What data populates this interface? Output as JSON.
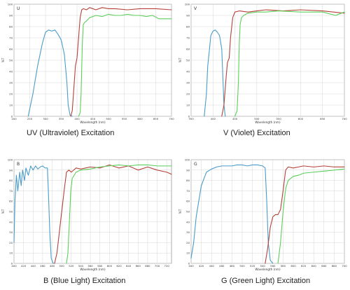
{
  "chart_data": [
    {
      "type": "line",
      "panel_letter": "U",
      "caption": "UV (Ultraviolet) Excitation",
      "xlabel": "Wavelength (nm)",
      "ylabel": "%T",
      "xlim": [
        200,
        700
      ],
      "ylim": [
        0,
        100
      ],
      "xticks": [
        200,
        250,
        300,
        350,
        400,
        450,
        500,
        550,
        600,
        650,
        700
      ],
      "yticks": [
        0,
        10,
        20,
        30,
        40,
        50,
        60,
        70,
        80,
        90,
        100
      ],
      "grid": true,
      "colors": {
        "excitation": "#4a9cc9",
        "dichroic": "#b5413a",
        "emission": "#5ccf5c"
      },
      "series": [
        {
          "key": "excitation",
          "x": [
            245,
            260,
            275,
            290,
            300,
            310,
            320,
            330,
            340,
            350,
            360,
            368,
            372,
            378,
            385
          ],
          "y": [
            0,
            20,
            45,
            65,
            75,
            77,
            76,
            77,
            73,
            68,
            55,
            30,
            10,
            1,
            0
          ]
        },
        {
          "key": "dichroic",
          "x": [
            380,
            385,
            390,
            395,
            400,
            405,
            410,
            415,
            420,
            430,
            440,
            460,
            480,
            500,
            520,
            560,
            600,
            650,
            700
          ],
          "y": [
            0,
            5,
            25,
            45,
            52,
            70,
            88,
            95,
            96,
            95,
            97,
            95,
            97,
            96,
            96,
            95,
            96,
            96,
            95
          ]
        },
        {
          "key": "emission",
          "x": [
            405,
            410,
            413,
            417,
            420,
            425,
            430,
            440,
            460,
            480,
            500,
            520,
            540,
            560,
            580,
            600,
            620,
            640,
            660,
            680,
            700
          ],
          "y": [
            0,
            3,
            20,
            65,
            82,
            84,
            85,
            88,
            90,
            89,
            91,
            90,
            90,
            91,
            90,
            90,
            89,
            90,
            87,
            87,
            87
          ]
        }
      ]
    },
    {
      "type": "line",
      "panel_letter": "V",
      "caption": "V (Violet) Excitation",
      "xlabel": "Wavelength (nm)",
      "ylabel": "%T",
      "xlim": [
        350,
        700
      ],
      "ylim": [
        0,
        100
      ],
      "xticks": [
        350,
        400,
        450,
        500,
        550,
        600,
        650,
        700
      ],
      "yticks": [
        0,
        10,
        20,
        30,
        40,
        50,
        60,
        70,
        80,
        90,
        100
      ],
      "grid": true,
      "colors": {
        "excitation": "#4a9cc9",
        "dichroic": "#b5413a",
        "emission": "#5ccf5c"
      },
      "series": [
        {
          "key": "excitation",
          "x": [
            380,
            385,
            388,
            392,
            395,
            400,
            405,
            410,
            415,
            420,
            425,
            428
          ],
          "y": [
            0,
            20,
            45,
            60,
            72,
            76,
            77,
            75,
            72,
            60,
            10,
            0
          ]
        },
        {
          "key": "dichroic",
          "x": [
            420,
            425,
            430,
            433,
            437,
            440,
            445,
            450,
            460,
            480,
            500,
            520,
            560,
            600,
            650,
            700
          ],
          "y": [
            0,
            10,
            35,
            48,
            52,
            70,
            88,
            93,
            94,
            93,
            94,
            95,
            94,
            95,
            94,
            92
          ]
        },
        {
          "key": "emission",
          "x": [
            450,
            455,
            458,
            460,
            462,
            465,
            470,
            480,
            500,
            520,
            550,
            600,
            650,
            680,
            700
          ],
          "y": [
            0,
            5,
            30,
            65,
            82,
            88,
            90,
            92,
            93,
            93,
            94,
            93,
            93,
            90,
            93
          ]
        }
      ]
    },
    {
      "type": "line",
      "panel_letter": "B",
      "caption": "B (Blue Light) Excitation",
      "xlabel": "Wavelength (nm)",
      "ylabel": "%T",
      "xlim": [
        400,
        730
      ],
      "ylim": [
        0,
        100
      ],
      "xticks": [
        400,
        420,
        440,
        460,
        480,
        500,
        520,
        540,
        560,
        580,
        600,
        620,
        640,
        660,
        680,
        700,
        720
      ],
      "yticks": [
        0,
        10,
        20,
        30,
        40,
        50,
        60,
        70,
        80,
        90,
        100
      ],
      "grid": true,
      "colors": {
        "excitation": "#4a9cc9",
        "dichroic": "#b5413a",
        "emission": "#5ccf5c"
      },
      "series": [
        {
          "key": "excitation",
          "x": [
            400,
            402,
            405,
            408,
            412,
            415,
            418,
            422,
            425,
            430,
            435,
            440,
            445,
            450,
            455,
            460,
            465,
            470,
            472,
            475,
            478,
            482,
            485
          ],
          "y": [
            20,
            60,
            85,
            70,
            88,
            75,
            90,
            80,
            92,
            85,
            94,
            90,
            94,
            91,
            93,
            94,
            92,
            92,
            70,
            30,
            5,
            0,
            0
          ]
        },
        {
          "key": "dichroic",
          "x": [
            485,
            490,
            495,
            500,
            505,
            510,
            515,
            520,
            530,
            540,
            560,
            580,
            600,
            620,
            640,
            660,
            680,
            700,
            720,
            730
          ],
          "y": [
            0,
            10,
            30,
            50,
            70,
            88,
            90,
            88,
            92,
            91,
            93,
            92,
            95,
            92,
            94,
            90,
            93,
            90,
            88,
            86
          ]
        },
        {
          "key": "emission",
          "x": [
            510,
            513,
            516,
            519,
            522,
            526,
            530,
            540,
            560,
            580,
            600,
            620,
            640,
            660,
            680,
            700,
            720,
            730
          ],
          "y": [
            0,
            10,
            40,
            70,
            82,
            85,
            88,
            90,
            91,
            93,
            94,
            95,
            94,
            95,
            95,
            94,
            94,
            94
          ]
        }
      ]
    },
    {
      "type": "line",
      "panel_letter": "G",
      "caption": "G (Green Light) Excitation",
      "xlabel": "Wavelength (nm)",
      "ylabel": "%T",
      "xlim": [
        400,
        700
      ],
      "ylim": [
        0,
        100
      ],
      "xticks": [
        400,
        420,
        440,
        460,
        480,
        500,
        520,
        540,
        560,
        580,
        600,
        620,
        640,
        660,
        680,
        700
      ],
      "yticks": [
        0,
        10,
        20,
        30,
        40,
        50,
        60,
        70,
        80,
        90,
        100
      ],
      "grid": true,
      "colors": {
        "excitation": "#4a9cc9",
        "dichroic": "#b5413a",
        "emission": "#5ccf5c"
      },
      "series": [
        {
          "key": "excitation",
          "x": [
            400,
            405,
            410,
            420,
            430,
            440,
            450,
            460,
            470,
            480,
            490,
            500,
            510,
            520,
            530,
            540,
            545,
            548,
            551,
            555,
            560
          ],
          "y": [
            5,
            20,
            45,
            75,
            88,
            91,
            93,
            94,
            94,
            94,
            95,
            95,
            94,
            95,
            95,
            94,
            92,
            60,
            20,
            3,
            0
          ]
        },
        {
          "key": "dichroic",
          "x": [
            545,
            550,
            555,
            560,
            565,
            570,
            575,
            580,
            585,
            590,
            600,
            610,
            620,
            640,
            660,
            680,
            700
          ],
          "y": [
            0,
            15,
            35,
            45,
            47,
            47,
            52,
            70,
            90,
            93,
            92,
            93,
            94,
            93,
            94,
            93,
            93
          ]
        },
        {
          "key": "emission",
          "x": [
            570,
            575,
            580,
            585,
            590,
            595,
            600,
            610,
            620,
            640,
            660,
            680,
            700
          ],
          "y": [
            0,
            20,
            50,
            72,
            80,
            82,
            84,
            85,
            87,
            88,
            89,
            90,
            91
          ]
        }
      ]
    }
  ]
}
